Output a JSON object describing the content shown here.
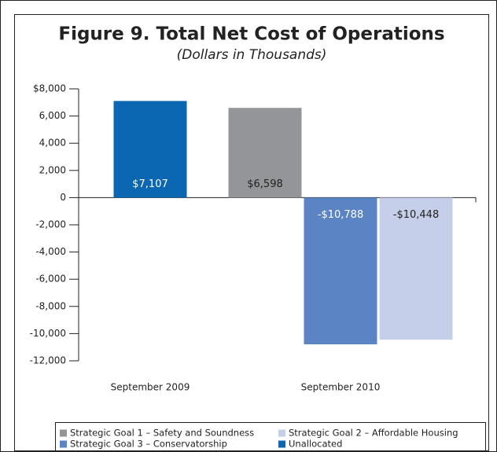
{
  "chart_data": {
    "type": "bar",
    "title": "Figure 9. Total Net Cost of Operations",
    "subtitle": "(Dollars in Thousands)",
    "categories": [
      "September 2009",
      "September 2010"
    ],
    "series": [
      {
        "name": "Strategic Goal 1 – Safety and Soundness",
        "color": "#939598",
        "values": [
          null,
          6598
        ],
        "value_labels": [
          null,
          "$6,598"
        ]
      },
      {
        "name": "Strategic Goal 3 – Conservatorship",
        "color": "#5b84c4",
        "values": [
          null,
          -10788
        ],
        "value_labels": [
          null,
          "-$10,788"
        ]
      },
      {
        "name": "Strategic Goal 2 – Affordable Housing",
        "color": "#c5cfe9",
        "values": [
          null,
          -10448
        ],
        "value_labels": [
          null,
          "-$10,448"
        ]
      },
      {
        "name": "Unallocated",
        "color": "#0b67b2",
        "values": [
          7107,
          null
        ],
        "value_labels": [
          "$7,107",
          null
        ]
      }
    ],
    "ylim": [
      -12000,
      8000
    ],
    "yticks": [
      {
        "value": 8000,
        "label": "$8,000"
      },
      {
        "value": 6000,
        "label": "6,000"
      },
      {
        "value": 4000,
        "label": "4,000"
      },
      {
        "value": 2000,
        "label": "2,000"
      },
      0,
      {
        "value": -2000,
        "label": "-2,000"
      },
      {
        "value": -4000,
        "label": "-4,000"
      },
      {
        "value": -6000,
        "label": "-6,000"
      },
      {
        "value": -8000,
        "label": "-8,000"
      },
      {
        "value": -10000,
        "label": "-10,000"
      },
      {
        "value": -12000,
        "label": "-12,000"
      }
    ],
    "legend": "bottom"
  }
}
